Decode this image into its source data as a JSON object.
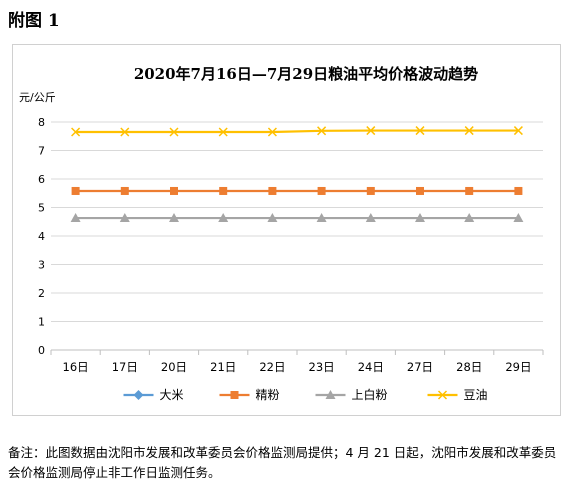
{
  "figure_label": "附图 1",
  "note": "备注：此图数据由沈阳市发展和改革委员会价格监测局提供；4 月 21 日起，沈阳市发展和改革委员会价格监测局停止非工作日监测任务。",
  "chart_data": {
    "type": "line",
    "title": "2020年7月16日—7月29日粮油平均价格波动趋势",
    "ylabel": "元/公斤",
    "xlabel": "",
    "categories": [
      "16日",
      "17日",
      "20日",
      "21日",
      "22日",
      "23日",
      "24日",
      "27日",
      "28日",
      "29日"
    ],
    "ylim": [
      0,
      8
    ],
    "yticks": [
      0,
      1,
      2,
      3,
      4,
      5,
      6,
      7,
      8
    ],
    "grid": true,
    "legend_position": "bottom",
    "series": [
      {
        "name": "大米",
        "color": "#5B9BD5",
        "marker": "diamond",
        "values": [
          null,
          null,
          null,
          null,
          null,
          null,
          null,
          null,
          null,
          null
        ]
      },
      {
        "name": "精粉",
        "color": "#ED7D31",
        "marker": "square",
        "values": [
          5.58,
          5.58,
          5.58,
          5.58,
          5.58,
          5.58,
          5.58,
          5.58,
          5.58,
          5.58
        ]
      },
      {
        "name": "上白粉",
        "color": "#A5A5A5",
        "marker": "triangle",
        "values": [
          4.63,
          4.63,
          4.63,
          4.63,
          4.63,
          4.63,
          4.63,
          4.63,
          4.63,
          4.63
        ]
      },
      {
        "name": "豆油",
        "color": "#FFC000",
        "marker": "x",
        "values": [
          7.65,
          7.65,
          7.65,
          7.65,
          7.65,
          7.69,
          7.7,
          7.7,
          7.7,
          7.7
        ]
      }
    ]
  }
}
